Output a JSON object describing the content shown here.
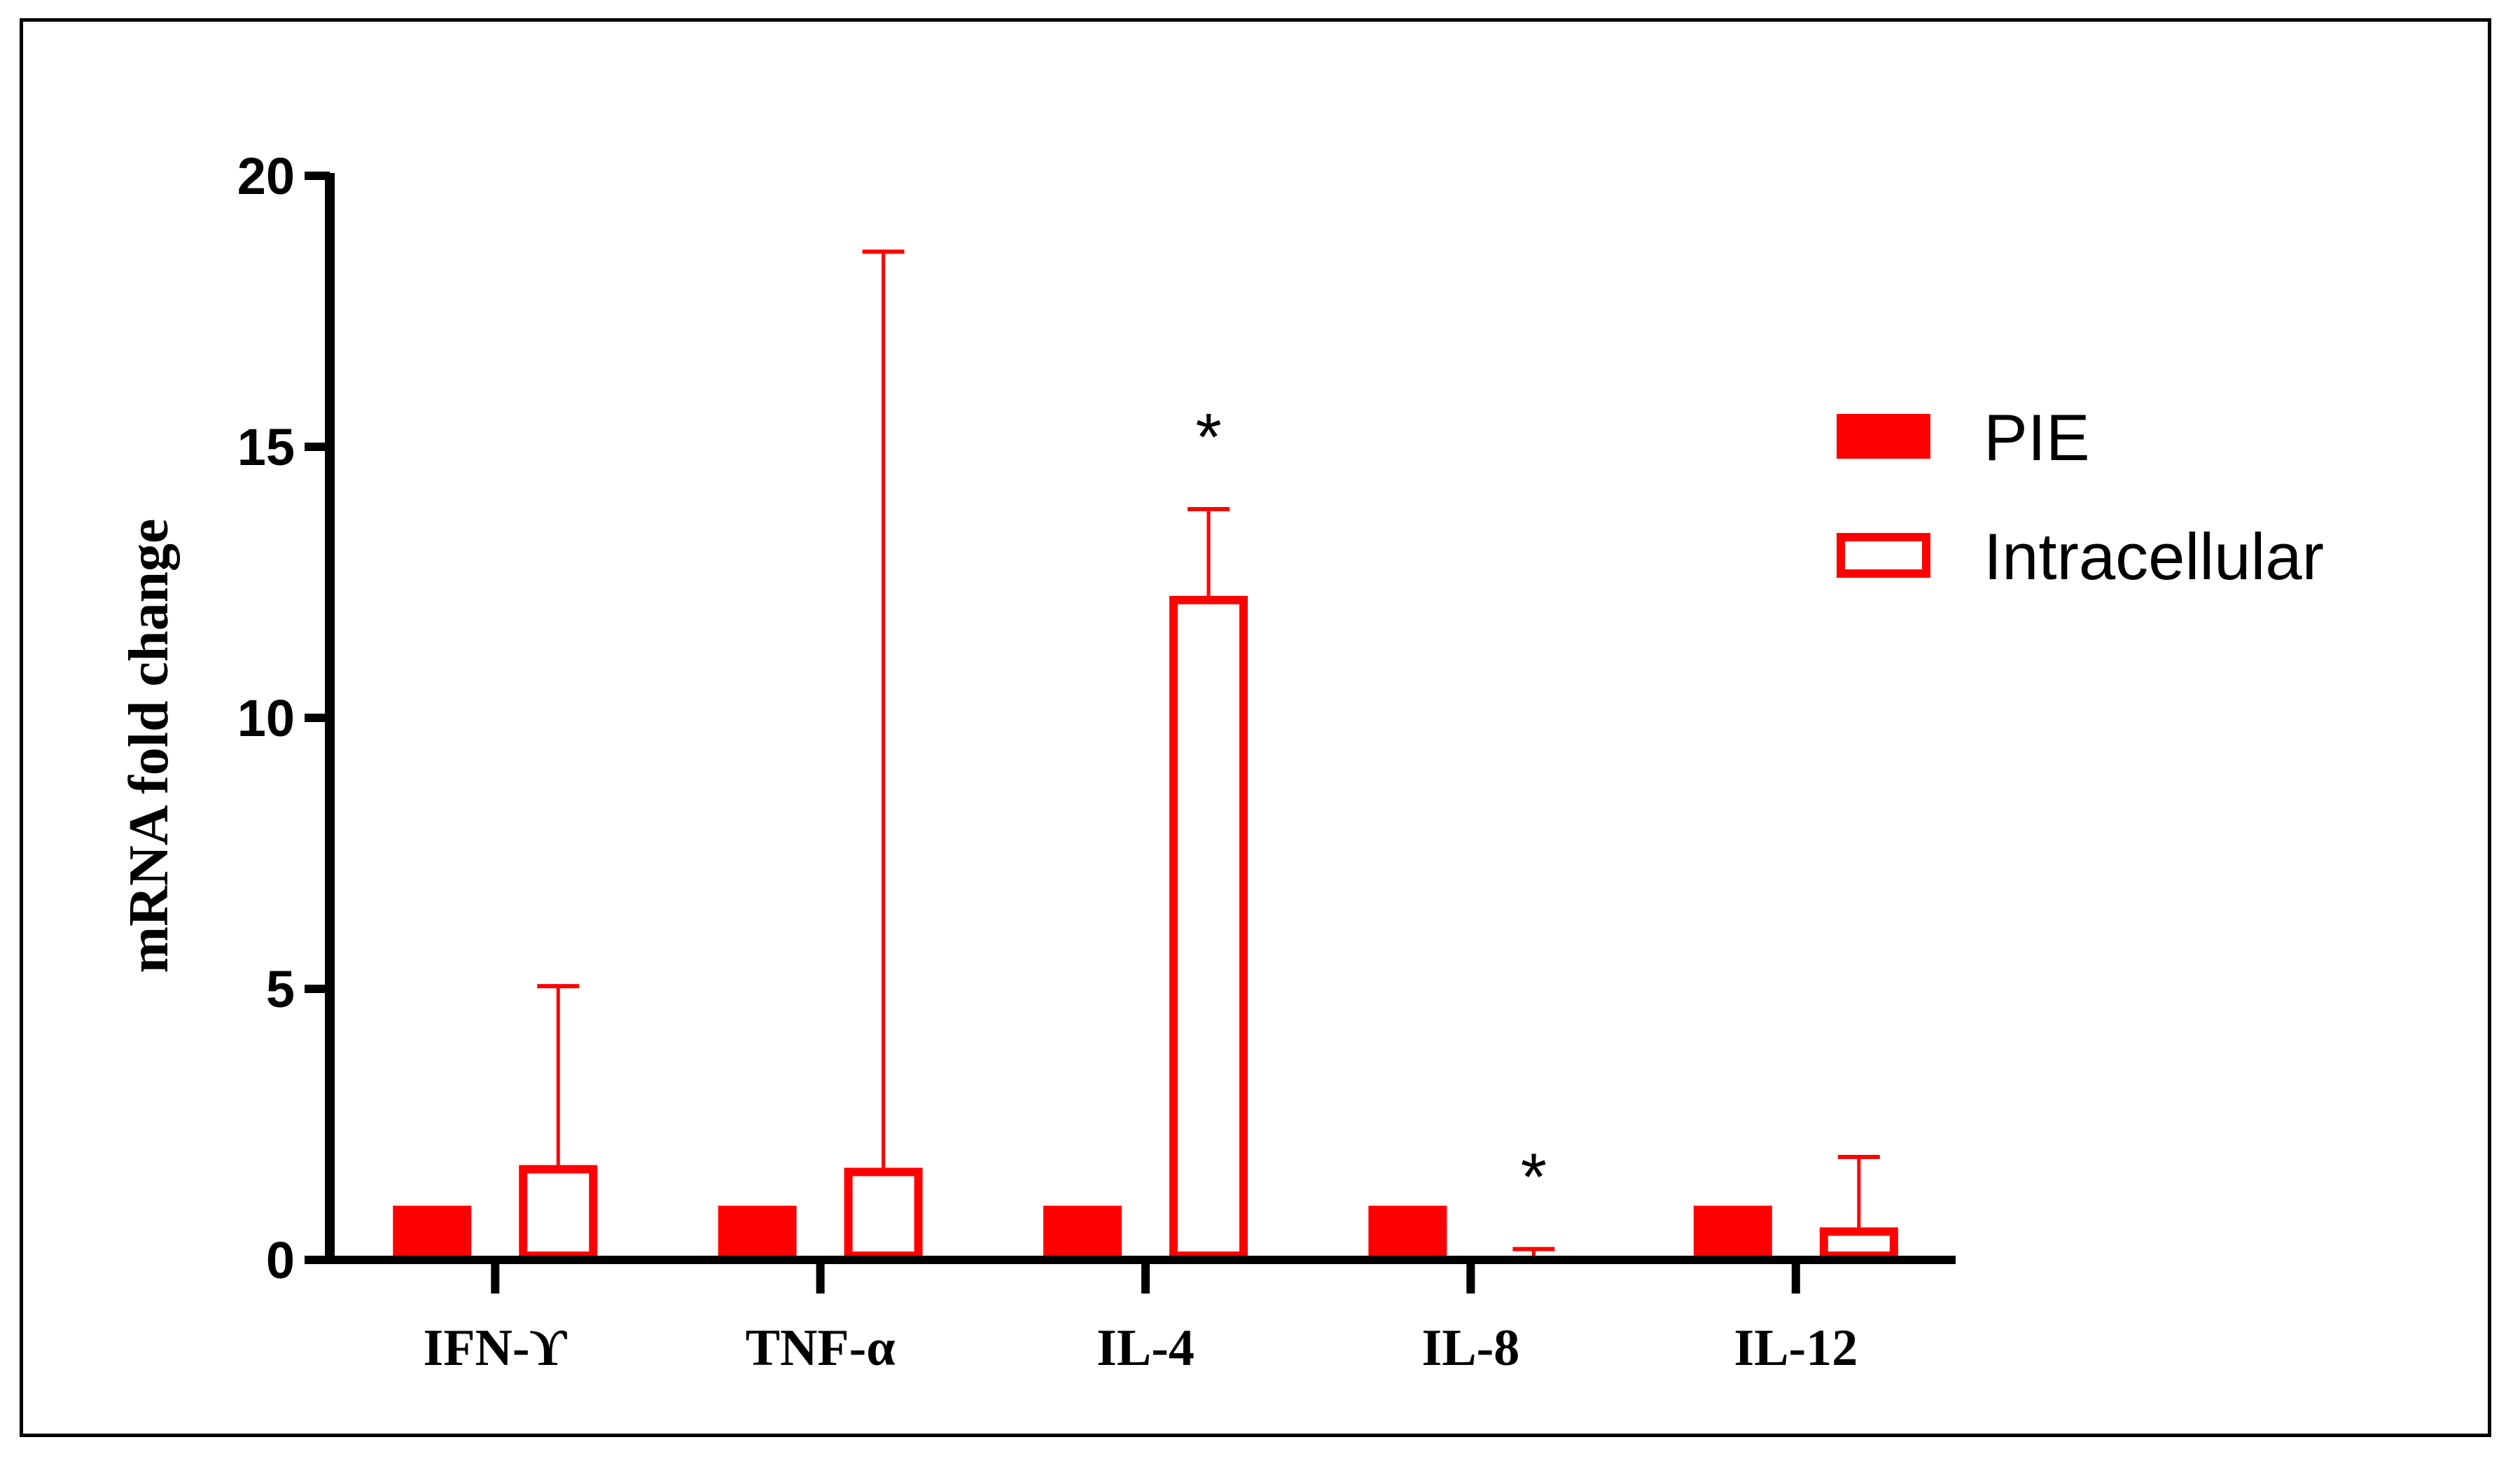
{
  "chart_data": {
    "type": "bar",
    "ylabel": "mRNA fold change",
    "xlabel": "",
    "ylim": [
      0,
      20
    ],
    "yticks": [
      0,
      5,
      10,
      15,
      20
    ],
    "categories": [
      "IFN-ϒ",
      "TNF-α",
      "IL-4",
      "IL-8",
      "IL-12"
    ],
    "series": [
      {
        "name": "PIE",
        "style": "filled",
        "color": "#ff0000",
        "values": [
          1,
          1,
          1,
          1,
          1
        ],
        "errors": [
          0,
          0,
          0,
          0,
          0
        ]
      },
      {
        "name": "Intracellular",
        "style": "outline",
        "color": "#ff0000",
        "values": [
          1.75,
          1.7,
          12.25,
          0.05,
          0.6
        ],
        "errors": [
          3.3,
          16.9,
          1.6,
          0.15,
          1.3
        ]
      }
    ],
    "annotations": [
      {
        "category": "IL-4",
        "series": "Intracellular",
        "text": "*"
      },
      {
        "category": "IL-8",
        "series": "Intracellular",
        "text": "*"
      }
    ],
    "legend": "right",
    "grid": false
  }
}
